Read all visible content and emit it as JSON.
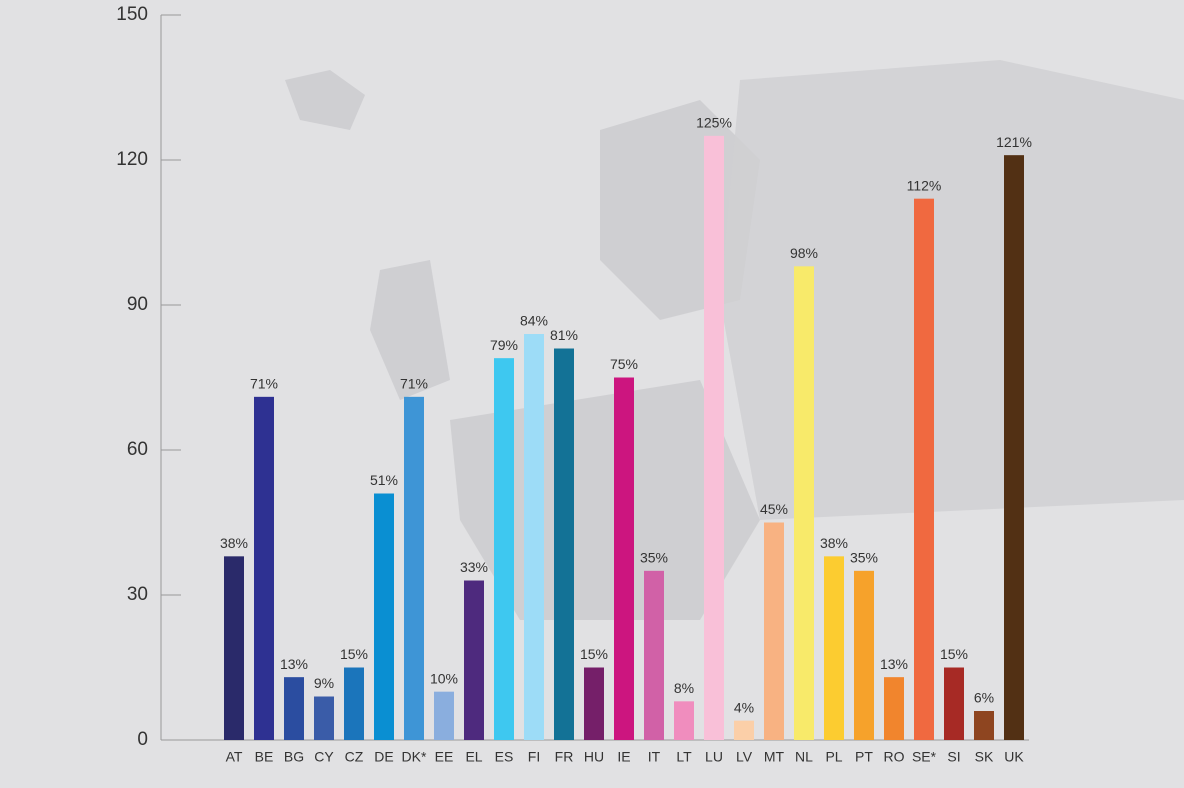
{
  "chart_data": {
    "type": "bar",
    "categories": [
      "AT",
      "BE",
      "BG",
      "CY",
      "CZ",
      "DE",
      "DK*",
      "EE",
      "EL",
      "ES",
      "FI",
      "FR",
      "HU",
      "IE",
      "IT",
      "LT",
      "LU",
      "LV",
      "MT",
      "NL",
      "PL",
      "PT",
      "RO",
      "SE*",
      "SI",
      "SK",
      "UK"
    ],
    "values": [
      38,
      71,
      13,
      9,
      15,
      51,
      71,
      10,
      33,
      79,
      84,
      81,
      15,
      75,
      35,
      8,
      125,
      4,
      45,
      98,
      38,
      35,
      13,
      112,
      15,
      6,
      121
    ],
    "value_labels": [
      "38%",
      "71%",
      "13%",
      "9%",
      "15%",
      "51%",
      "71%",
      "10%",
      "33%",
      "79%",
      "84%",
      "81%",
      "15%",
      "75%",
      "35%",
      "8%",
      "125%",
      "4%",
      "45%",
      "98%",
      "38%",
      "35%",
      "13%",
      "112%",
      "15%",
      "6%",
      "121%"
    ],
    "colors": [
      "#2a2a6a",
      "#2e3192",
      "#2b4da0",
      "#3a5ca8",
      "#1b75bb",
      "#0a8fd2",
      "#3e95d6",
      "#8aaede",
      "#4e2a7e",
      "#3ec8f0",
      "#9ddcf7",
      "#137296",
      "#751f69",
      "#cc157f",
      "#d161a7",
      "#f08dbe",
      "#f9c0d8",
      "#fbcfa8",
      "#f8b282",
      "#f8ea6a",
      "#fccc30",
      "#f6a22b",
      "#f1852d",
      "#f06940",
      "#a72a25",
      "#8e4520",
      "#523014"
    ],
    "ylim": [
      0,
      150
    ],
    "yticks": [
      0,
      30,
      60,
      90,
      120,
      150
    ]
  }
}
